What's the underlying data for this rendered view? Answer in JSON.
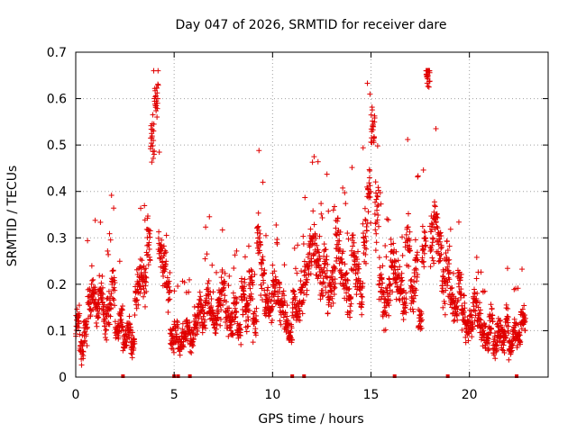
{
  "chart_data": {
    "type": "scatter",
    "title": "Day 047 of 2026, SRMTID for receiver dare",
    "xlabel": "GPS time / hours",
    "ylabel": "SRMTID / TECUs",
    "xlim": [
      0,
      24
    ],
    "ylim": [
      0,
      0.7
    ],
    "xticks": [
      "0",
      "5",
      "10",
      "15",
      "20"
    ],
    "yticks": [
      "0",
      "0.1",
      "0.2",
      "0.3",
      "0.4",
      "0.5",
      "0.6",
      "0.7"
    ],
    "grid": true,
    "marker": "plus",
    "color": "#e00000",
    "series": [
      {
        "name": "SRMTID",
        "x": [
          0.0,
          0.2,
          0.4,
          0.6,
          0.8,
          1.0,
          1.2,
          1.4,
          1.6,
          1.8,
          2.0,
          2.2,
          2.4,
          2.6,
          2.8,
          3.0,
          3.2,
          3.4,
          3.6,
          3.8,
          4.0,
          4.2,
          4.4,
          4.6,
          4.8,
          5.0,
          5.2,
          5.4,
          5.6,
          5.8,
          6.0,
          6.2,
          6.4,
          6.6,
          6.8,
          7.0,
          7.2,
          7.4,
          7.6,
          7.8,
          8.0,
          8.2,
          8.4,
          8.6,
          8.8,
          9.0,
          9.2,
          9.4,
          9.6,
          9.8,
          10.0,
          10.2,
          10.4,
          10.6,
          10.8,
          11.0,
          11.2,
          11.4,
          11.6,
          11.8,
          12.0,
          12.2,
          12.4,
          12.6,
          12.8,
          13.0,
          13.2,
          13.4,
          13.6,
          13.8,
          14.0,
          14.2,
          14.4,
          14.6,
          14.8,
          15.0,
          15.2,
          15.4,
          15.6,
          15.8,
          16.0,
          16.2,
          16.4,
          16.6,
          16.8,
          17.0,
          17.2,
          17.4,
          17.6,
          17.8,
          18.0,
          18.2,
          18.4,
          18.6,
          18.8,
          19.0,
          19.2,
          19.4,
          19.6,
          19.8,
          20.0,
          20.2,
          20.4,
          20.6,
          20.8,
          21.0,
          21.2,
          21.4,
          21.6,
          21.8,
          22.0,
          22.2,
          22.4,
          22.6,
          22.8
        ],
        "y": [
          0.12,
          0.06,
          0.1,
          0.16,
          0.19,
          0.14,
          0.17,
          0.12,
          0.15,
          0.2,
          0.1,
          0.13,
          0.08,
          0.11,
          0.07,
          0.18,
          0.22,
          0.19,
          0.3,
          0.52,
          0.6,
          0.28,
          0.24,
          0.18,
          0.08,
          0.1,
          0.07,
          0.09,
          0.11,
          0.08,
          0.12,
          0.15,
          0.13,
          0.17,
          0.14,
          0.12,
          0.16,
          0.19,
          0.13,
          0.11,
          0.15,
          0.1,
          0.18,
          0.14,
          0.2,
          0.12,
          0.3,
          0.22,
          0.16,
          0.14,
          0.2,
          0.17,
          0.15,
          0.12,
          0.09,
          0.16,
          0.14,
          0.18,
          0.22,
          0.26,
          0.3,
          0.25,
          0.2,
          0.24,
          0.18,
          0.21,
          0.3,
          0.24,
          0.2,
          0.17,
          0.26,
          0.22,
          0.18,
          0.3,
          0.4,
          0.55,
          0.35,
          0.2,
          0.15,
          0.18,
          0.25,
          0.22,
          0.2,
          0.15,
          0.3,
          0.18,
          0.24,
          0.12,
          0.28,
          0.65,
          0.3,
          0.34,
          0.28,
          0.2,
          0.24,
          0.17,
          0.15,
          0.2,
          0.14,
          0.1,
          0.12,
          0.16,
          0.13,
          0.1,
          0.08,
          0.12,
          0.07,
          0.1,
          0.08,
          0.12,
          0.06,
          0.1,
          0.09,
          0.13,
          0.11
        ],
        "spread": [
          0.05,
          0.04,
          0.05,
          0.06,
          0.07,
          0.06,
          0.07,
          0.06,
          0.06,
          0.08,
          0.05,
          0.05,
          0.04,
          0.04,
          0.04,
          0.06,
          0.07,
          0.08,
          0.09,
          0.08,
          0.06,
          0.08,
          0.07,
          0.07,
          0.04,
          0.04,
          0.03,
          0.04,
          0.04,
          0.04,
          0.05,
          0.05,
          0.05,
          0.06,
          0.06,
          0.05,
          0.06,
          0.06,
          0.05,
          0.05,
          0.05,
          0.04,
          0.06,
          0.05,
          0.07,
          0.05,
          0.08,
          0.07,
          0.06,
          0.05,
          0.06,
          0.06,
          0.05,
          0.05,
          0.04,
          0.05,
          0.05,
          0.06,
          0.07,
          0.09,
          0.08,
          0.08,
          0.07,
          0.08,
          0.07,
          0.07,
          0.08,
          0.08,
          0.07,
          0.06,
          0.08,
          0.07,
          0.07,
          0.08,
          0.09,
          0.07,
          0.1,
          0.08,
          0.06,
          0.07,
          0.08,
          0.07,
          0.07,
          0.06,
          0.09,
          0.06,
          0.08,
          0.05,
          0.09,
          0.05,
          0.1,
          0.08,
          0.09,
          0.08,
          0.08,
          0.06,
          0.06,
          0.07,
          0.06,
          0.05,
          0.05,
          0.06,
          0.05,
          0.04,
          0.04,
          0.05,
          0.04,
          0.04,
          0.04,
          0.05,
          0.03,
          0.04,
          0.04,
          0.05,
          0.04
        ]
      }
    ],
    "data_gaps": [
      2.4,
      5.0,
      5.2,
      5.8,
      11.0,
      11.6,
      16.2,
      18.9,
      22.4
    ]
  }
}
